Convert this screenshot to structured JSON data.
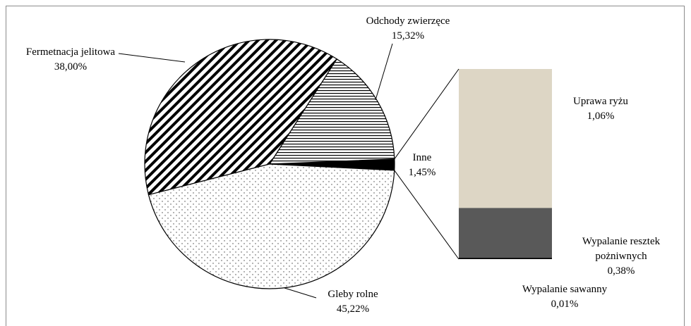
{
  "chart_data": {
    "type": "pie",
    "categories": [
      "Inne",
      "Odchody zwierzęce",
      "Fermetnacja jelitowa",
      "Gleby rolne"
    ],
    "values": [
      1.45,
      15.32,
      38.0,
      45.22
    ],
    "value_labels": [
      "1,45%",
      "15,32%",
      "38,00%",
      "45,22%"
    ],
    "patterns": [
      "solid",
      "horizontal",
      "diagonal",
      "dots"
    ],
    "breakdown": {
      "categories": [
        "Uprawa ryżu",
        "Wypalanie resztek pożniwnych",
        "Wypalanie sawanny"
      ],
      "values": [
        1.06,
        0.38,
        0.01
      ],
      "value_labels": [
        "1,06%",
        "0,38%",
        "0,01%"
      ],
      "colors": [
        "#ddd6c5",
        "#595959",
        "#000000"
      ]
    }
  }
}
